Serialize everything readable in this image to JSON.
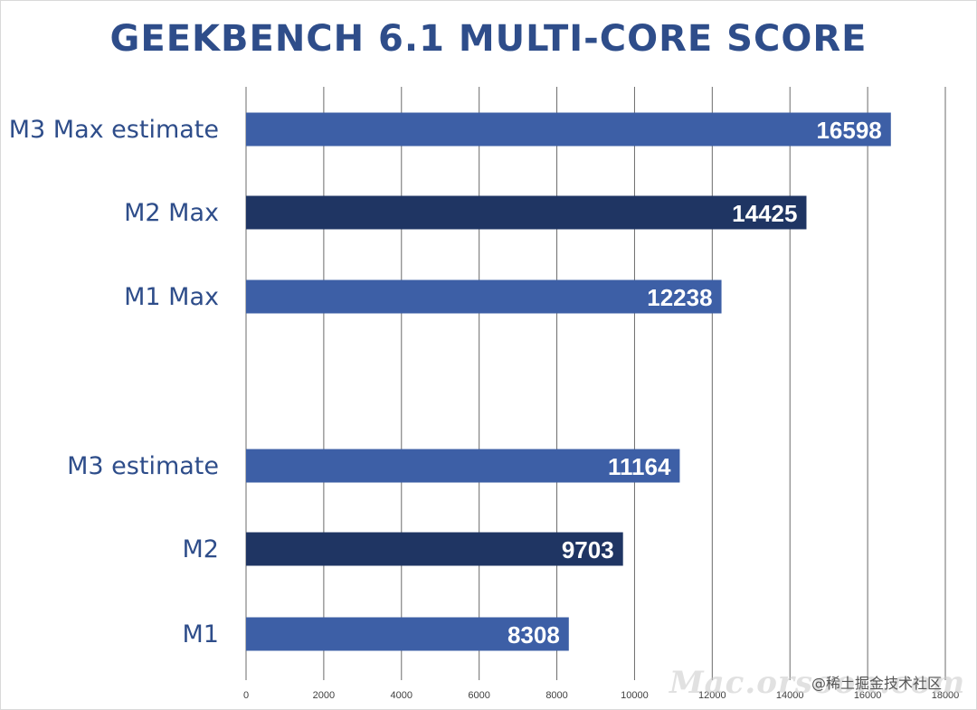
{
  "chart_data": {
    "type": "bar",
    "orientation": "horizontal",
    "title": "GEEKBENCH 6.1 MULTI-CORE SCORE",
    "xlabel": "",
    "ylabel": "",
    "xlim": [
      0,
      18000
    ],
    "ticks": [
      "0",
      "2000",
      "4000",
      "6000",
      "8000",
      "10000",
      "12000",
      "14000",
      "16000",
      "18000"
    ],
    "grid": true,
    "legend": "none",
    "groups": [
      {
        "categories": [
          "M3 Max estimate",
          "M2 Max",
          "M1 Max"
        ],
        "values": [
          16598,
          14425,
          12238
        ]
      },
      {
        "categories": [
          "M3 estimate",
          "M2",
          "M1"
        ],
        "values": [
          11164,
          9703,
          8308
        ]
      }
    ],
    "colors": {
      "light_bar": "#3d5fa6",
      "dark_bar": "#1f3563",
      "title": "#2e4d8a",
      "label": "#2e4d8a"
    },
    "bar_styles": [
      "light",
      "dark",
      "light"
    ]
  },
  "watermark": "Mac.orsoon.com",
  "credit": "@稀土掘金技术社区"
}
